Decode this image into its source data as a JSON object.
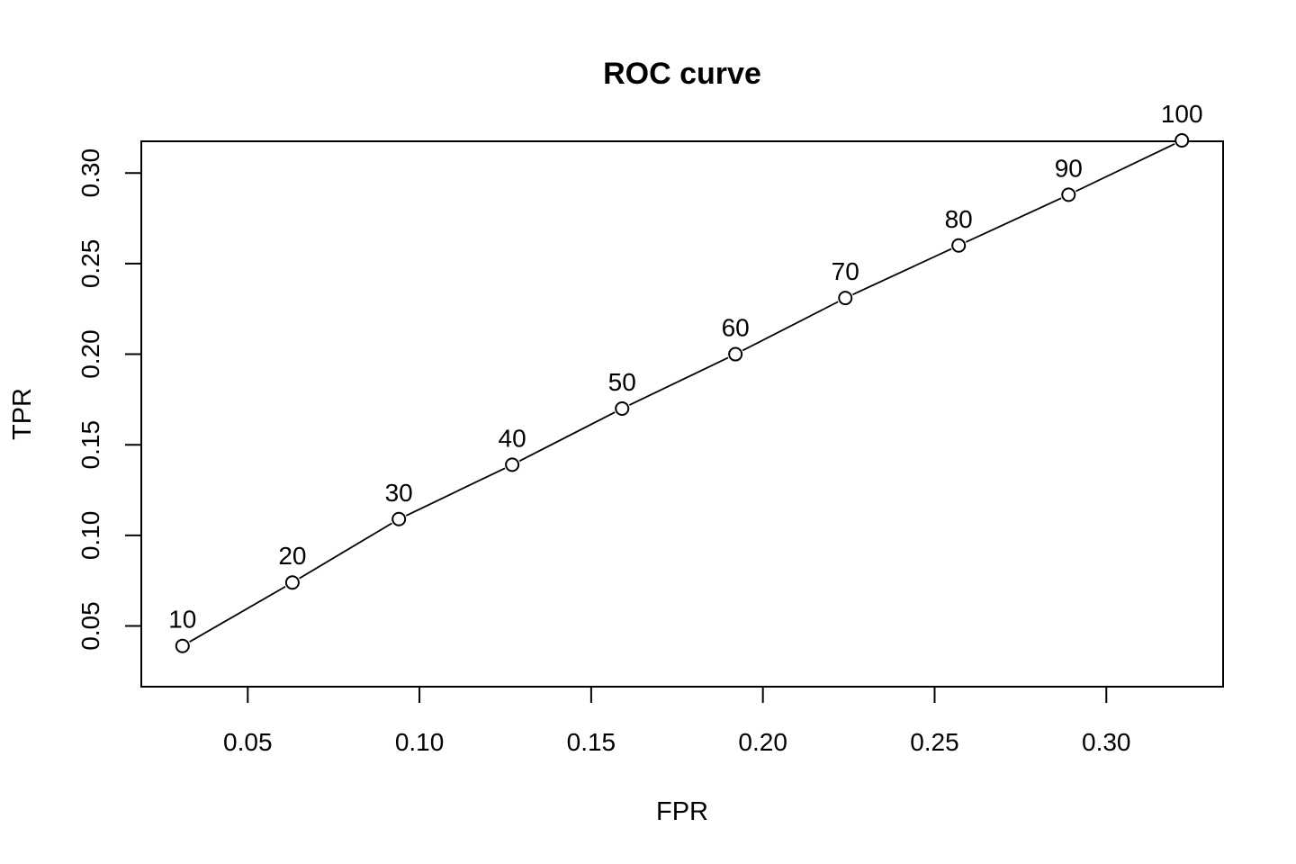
{
  "chart_data": {
    "type": "line",
    "title": "ROC curve",
    "xlabel": "FPR",
    "ylabel": "TPR",
    "xlim": [
      0.019,
      0.334
    ],
    "ylim": [
      0.0165,
      0.3175
    ],
    "xticks": [
      "0.05",
      "0.10",
      "0.15",
      "0.20",
      "0.25",
      "0.30"
    ],
    "yticks": [
      "0.05",
      "0.10",
      "0.15",
      "0.20",
      "0.25",
      "0.30"
    ],
    "grid": false,
    "legend": "none",
    "series": [
      {
        "x": [
          0.031,
          0.063,
          0.094,
          0.127,
          0.159,
          0.192,
          0.224,
          0.257,
          0.289,
          0.322
        ],
        "y": [
          0.039,
          0.074,
          0.109,
          0.139,
          0.17,
          0.2,
          0.231,
          0.26,
          0.288,
          0.318
        ],
        "labels": [
          "10",
          "20",
          "30",
          "40",
          "50",
          "60",
          "70",
          "80",
          "90",
          "100"
        ]
      }
    ]
  }
}
